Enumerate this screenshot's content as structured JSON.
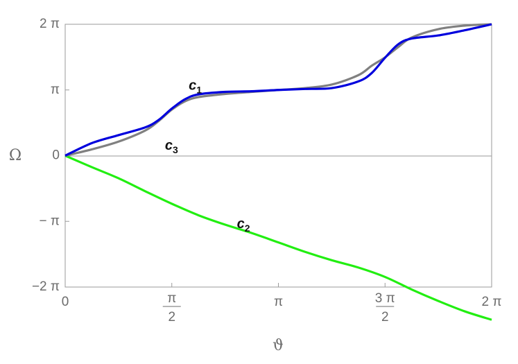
{
  "chart_data": {
    "type": "line",
    "xlabel": "ϑ",
    "ylabel": "Ω",
    "xlim": [
      0,
      6.283185307179586
    ],
    "ylim": [
      -6.283185307179586,
      6.283185307179586
    ],
    "grid": false,
    "zero_line": true,
    "x_ticks": [
      {
        "value": 0,
        "label": "0"
      },
      {
        "value": 1.5707963267948966,
        "num": "π",
        "den": "2"
      },
      {
        "value": 3.141592653589793,
        "label": "π"
      },
      {
        "value": 4.71238898038469,
        "num": "3 π",
        "den": "2"
      },
      {
        "value": 6.283185307179586,
        "label": "2 π"
      }
    ],
    "y_ticks": [
      {
        "value": 6.283185307179586,
        "label": "2 π"
      },
      {
        "value": 3.141592653589793,
        "label": "π"
      },
      {
        "value": 0,
        "label": "0"
      },
      {
        "value": -3.141592653589793,
        "label": "− π"
      },
      {
        "value": -6.283185307179586,
        "label": "−2 π"
      }
    ],
    "series": [
      {
        "name": "c1",
        "color": "#0000dd",
        "x": [
          0,
          0.3927,
          0.7854,
          1.1781,
          1.3744,
          1.5708,
          1.7671,
          1.9635,
          2.3562,
          2.7489,
          3.1416,
          3.5343,
          3.927,
          4.3197,
          4.516,
          4.7124,
          4.9087,
          5.1051,
          5.4978,
          5.8905,
          6.2832
        ],
        "y": [
          0,
          0.6,
          0.98,
          1.35,
          1.7,
          2.25,
          2.7,
          2.93,
          3.05,
          3.08,
          3.1416,
          3.19,
          3.23,
          3.55,
          3.95,
          4.68,
          5.33,
          5.6,
          5.75,
          6.0,
          6.2832
        ]
      },
      {
        "name": "c2",
        "color": "#22ee11",
        "x": [
          0,
          0.3927,
          0.7854,
          1.1781,
          1.5708,
          1.9635,
          2.3562,
          2.7489,
          3.1416,
          3.5343,
          3.927,
          4.3197,
          4.7124,
          5.1051,
          5.4978,
          5.8905,
          6.2832
        ],
        "y": [
          0,
          -0.55,
          -1.08,
          -1.7,
          -2.3,
          -2.85,
          -3.3,
          -3.7,
          -4.15,
          -4.6,
          -5.0,
          -5.35,
          -5.8,
          -6.4,
          -6.95,
          -7.45,
          -7.85
        ]
      },
      {
        "name": "c3",
        "color": "#808080",
        "x": [
          0,
          0.3927,
          0.7854,
          1.1781,
          1.3744,
          1.5708,
          1.7671,
          1.9635,
          2.3562,
          2.7489,
          3.1416,
          3.5343,
          3.927,
          4.3197,
          4.516,
          4.7124,
          4.9087,
          5.1051,
          5.4978,
          5.8905,
          6.2832
        ],
        "y": [
          0,
          0.3,
          0.67,
          1.2,
          1.65,
          2.2,
          2.6,
          2.8,
          2.95,
          3.05,
          3.1416,
          3.23,
          3.4,
          3.85,
          4.3,
          4.7,
          5.2,
          5.65,
          6.05,
          6.22,
          6.2832
        ]
      }
    ],
    "annotations": [
      {
        "series": "c1",
        "text": "c",
        "sub": "1",
        "x": 1.82,
        "y": 3.15
      },
      {
        "series": "c3",
        "text": "c",
        "sub": "3",
        "x": 1.47,
        "y": 0.28
      },
      {
        "series": "c2",
        "text": "c",
        "sub": "2",
        "x": 2.53,
        "y": -3.47
      }
    ]
  }
}
